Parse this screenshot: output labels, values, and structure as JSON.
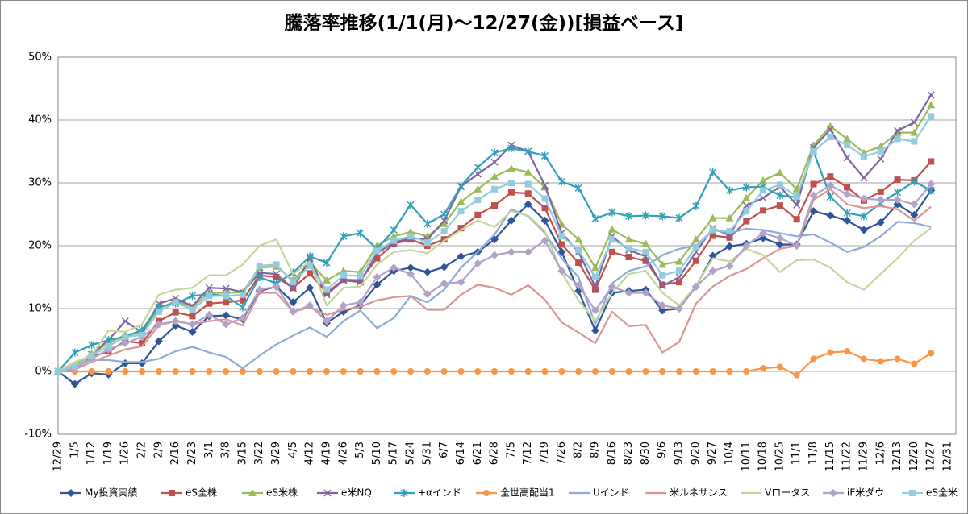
{
  "chart_data": {
    "type": "line",
    "title": "騰落率推移(1/1(月)～12/27(金))[損益ベース]",
    "categories": [
      "12/29",
      "1/5",
      "1/12",
      "1/19",
      "1/26",
      "2/2",
      "2/9",
      "2/16",
      "2/23",
      "3/1",
      "3/8",
      "3/15",
      "3/22",
      "3/29",
      "4/5",
      "4/12",
      "4/19",
      "4/26",
      "5/3",
      "5/10",
      "5/17",
      "5/24",
      "5/31",
      "6/7",
      "6/14",
      "6/21",
      "6/28",
      "7/5",
      "7/12",
      "7/19",
      "7/26",
      "8/2",
      "8/9",
      "8/16",
      "8/23",
      "8/30",
      "9/6",
      "9/13",
      "9/20",
      "9/27",
      "10/4",
      "10/11",
      "10/18",
      "10/25",
      "11/1",
      "11/8",
      "11/15",
      "11/22",
      "11/29",
      "12/6",
      "12/13",
      "12/20",
      "12/27",
      "12/31"
    ],
    "ylim": [
      -10,
      50
    ],
    "yticks": [
      {
        "value": -10,
        "label": "-10%"
      },
      {
        "value": 0,
        "label": "0%"
      },
      {
        "value": 10,
        "label": "10%"
      },
      {
        "value": 20,
        "label": "20%"
      },
      {
        "value": 30,
        "label": "30%"
      },
      {
        "value": 40,
        "label": "40%"
      },
      {
        "value": 50,
        "label": "50%"
      }
    ],
    "grid": true,
    "legend": "bottom",
    "series": [
      {
        "name": "My投資実績",
        "color": "#2f5597",
        "marker": "diamond",
        "values": [
          0,
          -2,
          -0.3,
          -0.5,
          1.3,
          1.3,
          4.8,
          7.3,
          6.3,
          8.8,
          8.9,
          8.3,
          12.8,
          13.5,
          11,
          13.3,
          7.7,
          9.5,
          10.5,
          13.8,
          16,
          16.5,
          15.8,
          16.6,
          18.3,
          19,
          21,
          24,
          26.6,
          24,
          19,
          12.8,
          6.5,
          12.5,
          12.8,
          13,
          9.7,
          10,
          13.5,
          18.4,
          19.9,
          20.3,
          21.2,
          20.2,
          20.2,
          25.5,
          24.8,
          24,
          22.5,
          23.7,
          26.6,
          24.9,
          28.8,
          null
        ]
      },
      {
        "name": "eS全株",
        "color": "#c0504d",
        "marker": "square",
        "values": [
          0,
          0.8,
          2.3,
          3.2,
          4.8,
          4.5,
          8,
          9.4,
          8.8,
          10.8,
          11,
          11.3,
          15.3,
          15,
          13.3,
          15.6,
          12.5,
          14.6,
          14.5,
          18,
          20.3,
          21,
          20,
          21,
          22.8,
          24.9,
          26.4,
          28.5,
          28.3,
          26,
          20.2,
          17.3,
          13,
          19,
          18.2,
          17.6,
          13.8,
          14.2,
          17.6,
          21.6,
          21.3,
          23.9,
          25.6,
          26.4,
          24.2,
          29.8,
          31,
          29.3,
          27.2,
          28.6,
          30.5,
          30.4,
          33.4,
          null
        ]
      },
      {
        "name": "eS米株",
        "color": "#9bbb59",
        "marker": "triangle",
        "values": [
          0,
          1,
          2.8,
          4.5,
          5.8,
          6.2,
          10,
          11.2,
          10.2,
          12.5,
          12.5,
          12.6,
          16.5,
          16.7,
          14.5,
          17.3,
          14.5,
          16,
          15.8,
          20,
          21.5,
          22.2,
          21.5,
          23.5,
          27,
          29,
          31,
          32.3,
          31.7,
          29.3,
          23.4,
          21,
          16.5,
          22.6,
          21,
          20.3,
          17,
          17.5,
          21,
          24.4,
          24.4,
          27.6,
          30.4,
          31.6,
          29,
          36,
          39,
          37,
          34.8,
          35.8,
          38,
          38,
          42.4,
          null
        ]
      },
      {
        "name": "e米NQ",
        "color": "#8064a2",
        "marker": "x",
        "values": [
          0,
          0.5,
          2.7,
          5,
          8,
          6.2,
          10.8,
          11.6,
          10.4,
          13.3,
          13.2,
          12.6,
          15.7,
          15.5,
          13.2,
          18,
          12.2,
          14.5,
          14.2,
          18.8,
          20.5,
          21.2,
          21,
          24,
          29.4,
          31.4,
          33.3,
          36,
          35,
          29.6,
          22,
          19,
          13.5,
          21.5,
          19.3,
          18.3,
          13.6,
          15,
          19,
          22.8,
          21.6,
          26.4,
          27.6,
          29.4,
          26.5,
          35.6,
          38.5,
          34,
          30.8,
          33.8,
          38.3,
          39.6,
          44,
          null
        ]
      },
      {
        "name": "+αインド",
        "color": "#31a0b8",
        "marker": "star",
        "values": [
          0,
          3,
          4.2,
          5,
          5.5,
          6.6,
          10.3,
          10.8,
          12,
          12.3,
          12,
          10.2,
          15,
          14,
          15.7,
          18.3,
          17.3,
          21.5,
          22,
          19.5,
          22.5,
          26.5,
          23.5,
          25,
          29.5,
          32.5,
          34.8,
          35.5,
          35,
          34.3,
          30.2,
          29.2,
          24.3,
          25.3,
          24.7,
          24.8,
          24.7,
          24.4,
          26.3,
          31.7,
          28.8,
          29.3,
          29.4,
          28,
          27.7,
          35,
          27.8,
          25.2,
          24.7,
          26.8,
          28.5,
          30.2,
          28.8,
          null
        ]
      },
      {
        "name": "全世高配当1",
        "color": "#f79646",
        "marker": "circle",
        "values": [
          0,
          0,
          0,
          0,
          0,
          0,
          0,
          0,
          0,
          0,
          0,
          0,
          0,
          0,
          0,
          0,
          0,
          0,
          0,
          0,
          0,
          0,
          0,
          0,
          0,
          0,
          0,
          0,
          0,
          0,
          0,
          0,
          0,
          0,
          0,
          0,
          0,
          0,
          0,
          0,
          0,
          0,
          0.5,
          0.7,
          -0.6,
          2,
          3,
          3.2,
          2,
          1.6,
          2,
          1.2,
          2.9,
          null
        ]
      },
      {
        "name": "Uインド",
        "color": "#8eaadb",
        "marker": "none",
        "values": [
          0,
          1,
          1.8,
          1.8,
          1.5,
          1.5,
          2,
          3.2,
          3.9,
          3,
          2.3,
          0.5,
          2.5,
          4.3,
          5.7,
          7,
          5.5,
          8,
          9.7,
          6.9,
          8.5,
          12,
          11,
          13,
          16.5,
          19,
          21.8,
          25.8,
          24.7,
          22,
          18,
          15,
          7.5,
          14,
          16,
          16.7,
          18.5,
          19.5,
          20,
          22.5,
          22,
          22.7,
          22.5,
          22,
          21.5,
          21.8,
          20.5,
          19,
          19.8,
          21.5,
          23.8,
          23.6,
          23,
          null
        ]
      },
      {
        "name": "米ルネサンス",
        "color": "#d99694",
        "marker": "none",
        "values": [
          0,
          0.3,
          1.5,
          2.5,
          3.5,
          4,
          7.3,
          8,
          7.5,
          8,
          8.3,
          7.3,
          12.5,
          12.5,
          9.5,
          10.2,
          9,
          9.8,
          10.3,
          11.3,
          11.8,
          12,
          9.8,
          9.8,
          12.2,
          13.8,
          13.3,
          12.2,
          13.7,
          11.4,
          7.8,
          6.2,
          4.5,
          9.5,
          7.2,
          7.4,
          3,
          4.7,
          10.8,
          13.5,
          15.2,
          16.3,
          18,
          19.5,
          20,
          27.3,
          29,
          26.6,
          26,
          26.3,
          25.8,
          24,
          26.2,
          null
        ]
      },
      {
        "name": "Vロータス",
        "color": "#c3d69b",
        "marker": "none",
        "values": [
          0,
          1.5,
          2.5,
          6.5,
          6.3,
          7.5,
          12.2,
          13,
          13.3,
          15.3,
          15.3,
          17,
          20,
          21,
          15.5,
          17.5,
          10.5,
          13.3,
          13.5,
          17,
          19,
          19.3,
          18.8,
          20.8,
          22.5,
          24,
          23,
          25.5,
          24.8,
          22.3,
          15.7,
          11.3,
          8,
          12.5,
          15.5,
          16,
          12.5,
          10.5,
          13.6,
          18,
          17.5,
          19.5,
          18.5,
          15.8,
          17.7,
          17.8,
          16.5,
          14.2,
          13,
          15.5,
          18,
          20.8,
          22.8,
          null
        ]
      },
      {
        "name": "iF米ダウ",
        "color": "#b3a2c7",
        "marker": "diamond",
        "values": [
          0,
          0.5,
          2,
          3.5,
          4.5,
          5.5,
          7.5,
          8,
          7.5,
          9,
          7.5,
          8.5,
          13,
          13.5,
          9.5,
          10.5,
          8,
          10.5,
          11,
          15,
          16.5,
          15.5,
          12.3,
          14,
          14.2,
          17.2,
          18.5,
          19,
          19,
          20.8,
          16,
          13.7,
          9.7,
          13.5,
          12.5,
          12.5,
          10.5,
          10,
          13.5,
          16,
          16.8,
          20,
          22,
          21.2,
          20,
          28,
          29.6,
          28.2,
          27.5,
          27.3,
          27.3,
          26.6,
          29.8,
          null
        ]
      },
      {
        "name": "eS全米",
        "color": "#93cddd",
        "marker": "square",
        "values": [
          0,
          0.8,
          2.5,
          4,
          5.5,
          5.8,
          9.5,
          11,
          9.8,
          12,
          12,
          12.2,
          16.8,
          17,
          14.2,
          16.8,
          13,
          15.3,
          15.2,
          19.2,
          20.8,
          21.5,
          20.5,
          22.3,
          25.5,
          27.3,
          29,
          30,
          29.8,
          27.5,
          21.5,
          19.3,
          15,
          21,
          19.6,
          19,
          15.3,
          16,
          19.8,
          22.5,
          22.3,
          25.5,
          28.8,
          29.7,
          27.8,
          35,
          37.3,
          36,
          34.2,
          35,
          37,
          36.6,
          40.6,
          null
        ]
      }
    ]
  }
}
